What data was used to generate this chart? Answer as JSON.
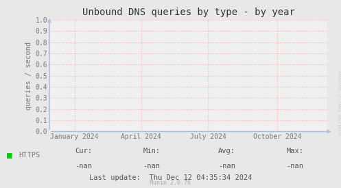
{
  "title": "Unbound DNS queries by type - by year",
  "ylabel": "queries / second",
  "ylim": [
    0.0,
    1.0
  ],
  "yticks": [
    0.0,
    0.1,
    0.2,
    0.3,
    0.4,
    0.5,
    0.6,
    0.7,
    0.8,
    0.9,
    1.0
  ],
  "xtick_labels": [
    "January 2024",
    "April 2024",
    "July 2024",
    "October 2024"
  ],
  "bg_color": "#e8e8e8",
  "plot_bg_color": "#f0f0f0",
  "grid_color": "#ffaaaa",
  "title_color": "#333333",
  "legend_label": "HTTPS",
  "legend_color": "#00cc00",
  "cur_val": "-nan",
  "min_val": "-nan",
  "avg_val": "-nan",
  "max_val": "-nan",
  "last_update": "Last update:  Thu Dec 12 04:35:34 2024",
  "munin_version": "Munin 2.0.76",
  "watermark": "RRDTOOL / TOBI OETIKER",
  "arrow_color": "#aabbdd",
  "font_color": "#555555",
  "stats_color": "#555555",
  "munin_color": "#aaaaaa",
  "tick_color": "#777777"
}
